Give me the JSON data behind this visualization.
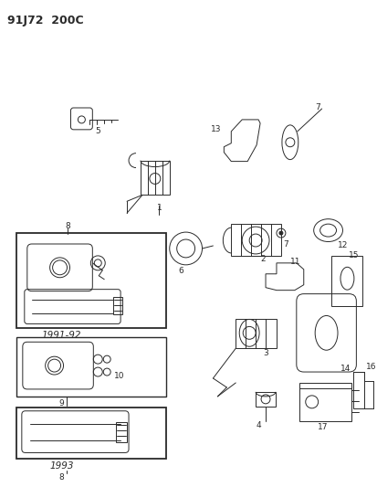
{
  "title": "91J72  200C",
  "bg": "#ffffff",
  "lc": "#2a2a2a",
  "lw": 0.7,
  "fs": 6.5,
  "title_fs": 9,
  "fig_w": 4.14,
  "fig_h": 5.33,
  "dpi": 100
}
